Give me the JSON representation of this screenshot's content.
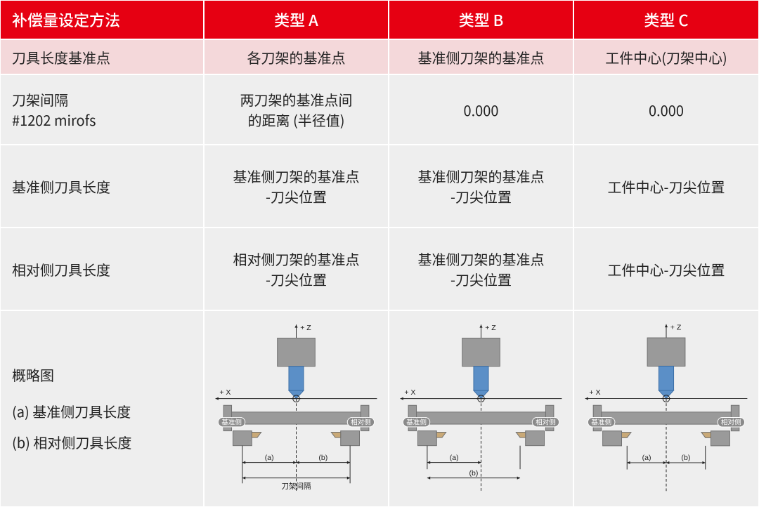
{
  "header": {
    "col0": "补偿量设定方法",
    "col1": "类型 A",
    "col2": "类型 B",
    "col3": "类型 C"
  },
  "row_ref": {
    "label": "刀具长度基准点",
    "a": "各刀架的基准点",
    "b": "基准侧刀架的基准点",
    "c": "工件中心(刀架中心)"
  },
  "row_spacing": {
    "label_l1": "刀架间隔",
    "label_l2": "#1202 mirofs",
    "a_l1": "两刀架的基准点间",
    "a_l2": "的距离 (半径值)",
    "b": "0.000",
    "c": "0.000"
  },
  "row_base_len": {
    "label": "基准侧刀具长度",
    "a_l1": "基准侧刀架的基准点",
    "a_l2": "-刀尖位置",
    "b_l1": "基准侧刀架的基准点",
    "b_l2": "-刀尖位置",
    "c": "工件中心-刀尖位置"
  },
  "row_opp_len": {
    "label": "相对侧刀具长度",
    "a_l1": "相对侧刀架的基准点",
    "a_l2": "-刀尖位置",
    "b_l1": "基准侧刀架的基准点",
    "b_l2": "-刀尖位置",
    "c": "工件中心-刀尖位置"
  },
  "row_diagram": {
    "label_l1": "概略图",
    "label_l2": "(a) 基准侧刀具长度",
    "label_l3": "(b) 相对侧刀具长度",
    "common": {
      "z_label": "+ Z",
      "x_label": "+ X",
      "left_tag": "基准侧",
      "right_tag": "相对侧",
      "a_label": "(a)",
      "b_label": "(b)",
      "interval_label": "刀架间隔",
      "col_gray": "#9a9a9a",
      "col_darkgray": "#6f6f6f",
      "col_blue": "#5b8fc7",
      "col_blue_dark": "#3a6da5",
      "col_line": "#222222",
      "col_tan": "#c9a977",
      "col_white": "#ffffff",
      "col_tag_bg": "#8a8a8a",
      "font_small": 11,
      "font_tag": 10,
      "line_w": 1.4
    },
    "typeA": {
      "show_interval_label": true,
      "dim_a_from": "left_post",
      "dim_a_to": "center",
      "dim_b_from": "center",
      "dim_b_to": "right_post"
    },
    "typeB": {
      "show_interval_label": false,
      "dim_a_from": "left_post",
      "dim_a_to": "center",
      "dim_b_from": "left_post",
      "dim_b_to": "right_tip"
    },
    "typeC": {
      "show_interval_label": false,
      "dim_a_from": "center",
      "dim_a_to": "left_tip",
      "dim_b_from": "center",
      "dim_b_to": "right_tip"
    }
  },
  "colors": {
    "header_bg": "#e60012",
    "header_fg": "#ffffff",
    "pink_bg": "#f4d8da",
    "body_bg": "#eeeeee",
    "text": "#222222",
    "border": "#ffffff"
  }
}
